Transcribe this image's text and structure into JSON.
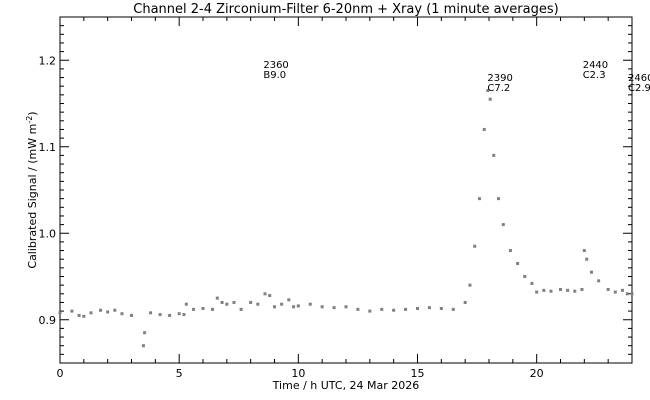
{
  "chart_data": {
    "type": "scatter",
    "title": "Channel 2-4   Zirconium-Filter   6-20nm + Xray   (1 minute averages)",
    "xlabel": "Time / h UTC, 24 Mar 2026",
    "ylabel_main": "Calibrated Signal / (mW m",
    "ylabel_sup": "-2",
    "ylabel_close": ")",
    "xlim": [
      0,
      24
    ],
    "ylim": [
      0.85,
      1.25
    ],
    "x_ticks": [
      0,
      5,
      10,
      15,
      20
    ],
    "x_tick_labels": [
      "0",
      "5",
      "10",
      "15",
      "20"
    ],
    "y_ticks": [
      0.9,
      1.0,
      1.1,
      1.2
    ],
    "y_tick_labels": [
      "0.9",
      "1.0",
      "1.1",
      "1.2"
    ],
    "grid": false,
    "marker_color": "#808080",
    "annotations": [
      {
        "x": 8.7,
        "y": 1.19,
        "number": "2360",
        "class": "B9.0"
      },
      {
        "x": 18.1,
        "y": 1.175,
        "number": "2390",
        "class": "C7.2"
      },
      {
        "x": 22.1,
        "y": 1.19,
        "number": "2440",
        "class": "C2.3"
      },
      {
        "x": 24.0,
        "y": 1.175,
        "number": "2460",
        "class": "C2.9"
      }
    ],
    "series": [
      {
        "x": [
          0,
          0.5,
          0.8,
          1.0,
          1.3,
          1.7,
          2.0,
          2.3,
          2.6,
          3.0,
          3.5,
          3.55,
          3.8,
          4.2,
          4.6,
          5.0,
          5.2,
          5.3,
          5.6,
          6.0,
          6.4,
          6.6,
          6.8,
          7.0,
          7.3,
          7.6,
          8.0,
          8.3,
          8.6,
          8.8,
          9.0,
          9.3,
          9.6,
          9.8,
          10.0,
          10.5,
          11.0,
          11.5,
          12.0,
          12.5,
          13.0,
          13.5,
          14.0,
          14.5,
          15.0,
          15.5,
          16.0,
          16.5,
          17.0,
          17.2,
          17.4,
          17.6,
          17.8,
          17.95,
          18.05,
          18.2,
          18.4,
          18.6,
          18.9,
          19.2,
          19.5,
          19.8,
          20.0,
          20.3,
          20.6,
          21.0,
          21.3,
          21.6,
          21.9,
          22.0,
          22.1,
          22.3,
          22.6,
          23.0,
          23.3,
          23.6,
          23.8,
          24.0
        ],
        "y": [
          0.908,
          0.91,
          0.905,
          0.904,
          0.908,
          0.911,
          0.909,
          0.911,
          0.907,
          0.905,
          0.87,
          0.885,
          0.908,
          0.906,
          0.905,
          0.907,
          0.906,
          0.918,
          0.912,
          0.913,
          0.912,
          0.925,
          0.92,
          0.918,
          0.92,
          0.912,
          0.92,
          0.918,
          0.93,
          0.928,
          0.915,
          0.918,
          0.923,
          0.915,
          0.916,
          0.918,
          0.915,
          0.914,
          0.915,
          0.912,
          0.91,
          0.912,
          0.911,
          0.912,
          0.913,
          0.914,
          0.913,
          0.912,
          0.92,
          0.94,
          0.985,
          1.04,
          1.12,
          1.165,
          1.155,
          1.09,
          1.04,
          1.01,
          0.98,
          0.965,
          0.95,
          0.942,
          0.932,
          0.934,
          0.933,
          0.935,
          0.934,
          0.933,
          0.935,
          0.98,
          0.97,
          0.955,
          0.945,
          0.935,
          0.932,
          0.934,
          0.93,
          0.93
        ]
      }
    ]
  }
}
